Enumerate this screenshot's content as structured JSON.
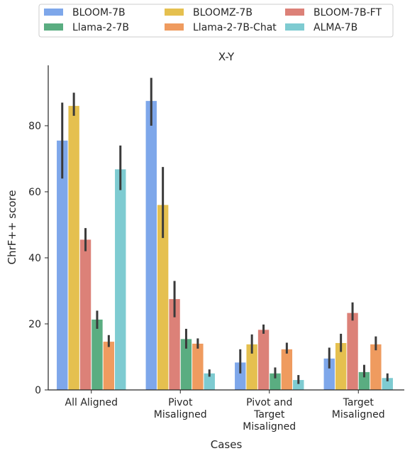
{
  "chart_data": {
    "type": "bar",
    "title": "X-Y",
    "xlabel": "Cases",
    "ylabel": "ChrF++ score",
    "ylim": [
      0,
      100
    ],
    "yticks": [
      0,
      20,
      40,
      60,
      80
    ],
    "grid": false,
    "legend_position": "top-center",
    "categories": [
      [
        "All Aligned"
      ],
      [
        "Pivot",
        "Misaligned"
      ],
      [
        "Pivot and",
        "Target",
        "Misaligned"
      ],
      [
        "Target",
        "Misaligned"
      ]
    ],
    "series": [
      {
        "name": "BLOOM-7B",
        "color": "#7ea7ea",
        "values": [
          75.5,
          87.5,
          8.3,
          9.5
        ],
        "err_low": [
          64,
          80,
          5,
          6.5
        ],
        "err_high": [
          87,
          94.5,
          12.3,
          12.8
        ]
      },
      {
        "name": "BLOOMZ-7B",
        "color": "#e5c04f",
        "values": [
          86.0,
          56.0,
          13.8,
          14.2
        ],
        "err_low": [
          83,
          46,
          11,
          11.5
        ],
        "err_high": [
          90,
          67.5,
          16.8,
          17
        ]
      },
      {
        "name": "BLOOM-7B-FT",
        "color": "#dc8178",
        "values": [
          45.5,
          27.5,
          18.2,
          23.3
        ],
        "err_low": [
          42,
          22,
          17,
          21
        ],
        "err_high": [
          49,
          33,
          19.8,
          26.5
        ]
      },
      {
        "name": "Llama-2-7B",
        "color": "#5aad81",
        "values": [
          21.3,
          15.4,
          5.0,
          5.4
        ],
        "err_low": [
          18.5,
          12.5,
          3.5,
          3.8
        ],
        "err_high": [
          24,
          18.5,
          6.8,
          7.6
        ]
      },
      {
        "name": "Llama-2-7B-Chat",
        "color": "#ef9b5f",
        "values": [
          14.6,
          14.0,
          12.3,
          13.8
        ],
        "err_low": [
          13,
          12.5,
          11,
          12
        ],
        "err_high": [
          16.6,
          15.6,
          14.3,
          16.2
        ]
      },
      {
        "name": "ALMA-7B",
        "color": "#7ecbd1",
        "values": [
          66.8,
          5.0,
          3.0,
          3.6
        ],
        "err_low": [
          60.5,
          4,
          1.8,
          2.6
        ],
        "err_high": [
          74,
          6.2,
          4.5,
          5
        ]
      }
    ]
  }
}
